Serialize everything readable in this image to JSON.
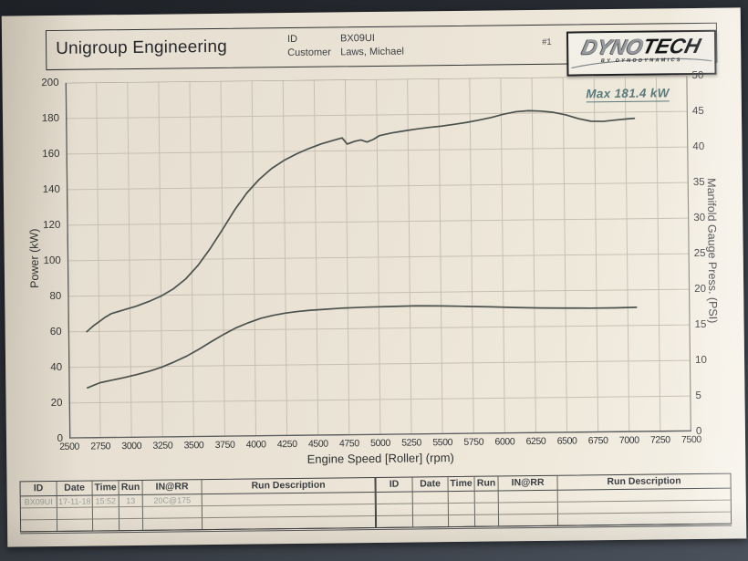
{
  "header": {
    "company": "Unigroup Engineering",
    "id_label": "ID",
    "id_value": "BX09UI",
    "customer_label": "Customer",
    "customer_value": "Laws, Michael",
    "page_number": "#1",
    "logo": {
      "part1": "DYNO",
      "part2": "TECH",
      "byline": "BY DYNODYNAMICS"
    }
  },
  "chart_data": {
    "type": "line",
    "title": "",
    "xlabel": "Engine Speed [Roller] (rpm)",
    "ylabel_left": "Power (kW)",
    "ylabel_right": "Manifold Gauge Press. (PSI)",
    "xlim": [
      2500,
      7500
    ],
    "ylim_left": [
      0,
      200
    ],
    "ylim_right": [
      0,
      50
    ],
    "x_ticks": [
      2500,
      2750,
      3000,
      3250,
      3500,
      3750,
      4000,
      4250,
      4500,
      4750,
      5000,
      5250,
      5500,
      5750,
      6000,
      6250,
      6500,
      6750,
      7000,
      7250,
      7500
    ],
    "y_ticks_left": [
      0,
      20,
      40,
      60,
      80,
      100,
      120,
      140,
      160,
      180,
      200
    ],
    "y_ticks_right": [
      0,
      5,
      10,
      15,
      20,
      25,
      30,
      35,
      40,
      45,
      50
    ],
    "grid": true,
    "legend": "none",
    "annotation": {
      "text": "Max 181.4 kW",
      "color": "#5b7a7a"
    },
    "line_color": "#4a514c",
    "grid_color": "#c7c0b2",
    "series": [
      {
        "name": "Power (kW)",
        "axis": "left",
        "points": [
          [
            2650,
            60
          ],
          [
            2700,
            63
          ],
          [
            2750,
            65.5
          ],
          [
            2800,
            68
          ],
          [
            2850,
            70
          ],
          [
            2950,
            72
          ],
          [
            3050,
            74
          ],
          [
            3150,
            76.5
          ],
          [
            3250,
            79.5
          ],
          [
            3350,
            83.5
          ],
          [
            3450,
            89
          ],
          [
            3550,
            96.5
          ],
          [
            3650,
            106
          ],
          [
            3750,
            116.5
          ],
          [
            3850,
            127.5
          ],
          [
            3950,
            137
          ],
          [
            4050,
            144.5
          ],
          [
            4150,
            150.5
          ],
          [
            4250,
            155
          ],
          [
            4350,
            158.5
          ],
          [
            4450,
            161.5
          ],
          [
            4550,
            164
          ],
          [
            4650,
            166
          ],
          [
            4720,
            167.3
          ],
          [
            4760,
            163.8
          ],
          [
            4820,
            165.3
          ],
          [
            4870,
            166
          ],
          [
            4920,
            164.8
          ],
          [
            4970,
            166.2
          ],
          [
            5020,
            168.3
          ],
          [
            5120,
            169.8
          ],
          [
            5220,
            170.8
          ],
          [
            5320,
            171.8
          ],
          [
            5420,
            172.6
          ],
          [
            5520,
            173.3
          ],
          [
            5620,
            174.2
          ],
          [
            5720,
            175.2
          ],
          [
            5820,
            176.4
          ],
          [
            5920,
            177.8
          ],
          [
            6020,
            179.6
          ],
          [
            6120,
            180.9
          ],
          [
            6220,
            181.4
          ],
          [
            6320,
            181.1
          ],
          [
            6420,
            180.3
          ],
          [
            6520,
            178.8
          ],
          [
            6620,
            176.6
          ],
          [
            6720,
            175.1
          ],
          [
            6820,
            174.9
          ],
          [
            6920,
            175.6
          ],
          [
            7020,
            176.2
          ],
          [
            7070,
            176.4
          ]
        ]
      },
      {
        "name": "Manifold Gauge Press. (PSI)",
        "axis": "right",
        "points": [
          [
            2650,
            7.1
          ],
          [
            2750,
            7.8
          ],
          [
            2850,
            8.15
          ],
          [
            2950,
            8.5
          ],
          [
            3050,
            8.9
          ],
          [
            3150,
            9.35
          ],
          [
            3250,
            9.9
          ],
          [
            3350,
            10.6
          ],
          [
            3450,
            11.4
          ],
          [
            3550,
            12.35
          ],
          [
            3650,
            13.4
          ],
          [
            3750,
            14.4
          ],
          [
            3850,
            15.3
          ],
          [
            3950,
            16.0
          ],
          [
            4050,
            16.6
          ],
          [
            4150,
            17.0
          ],
          [
            4250,
            17.3
          ],
          [
            4350,
            17.5
          ],
          [
            4450,
            17.65
          ],
          [
            4550,
            17.75
          ],
          [
            4700,
            17.9
          ],
          [
            4900,
            18.0
          ],
          [
            5100,
            18.05
          ],
          [
            5300,
            18.1
          ],
          [
            5500,
            18.05
          ],
          [
            5700,
            17.95
          ],
          [
            5900,
            17.85
          ],
          [
            6100,
            17.7
          ],
          [
            6300,
            17.6
          ],
          [
            6500,
            17.55
          ],
          [
            6700,
            17.5
          ],
          [
            6900,
            17.5
          ],
          [
            7070,
            17.55
          ]
        ]
      }
    ]
  },
  "table": {
    "headers": [
      "ID",
      "Date",
      "Time",
      "Run",
      "IN@RR",
      "Run Description"
    ],
    "left_rows": [
      [
        "BX09UI",
        "17-11-18",
        "15:52",
        "13",
        "20C@175",
        ""
      ],
      [
        "",
        "",
        "",
        "",
        "",
        ""
      ],
      [
        "",
        "",
        "",
        "",
        "",
        ""
      ]
    ],
    "right_rows": [
      [
        "",
        "",
        "",
        "",
        "",
        ""
      ],
      [
        "",
        "",
        "",
        "",
        "",
        ""
      ],
      [
        "",
        "",
        "",
        "",
        "",
        ""
      ]
    ]
  }
}
